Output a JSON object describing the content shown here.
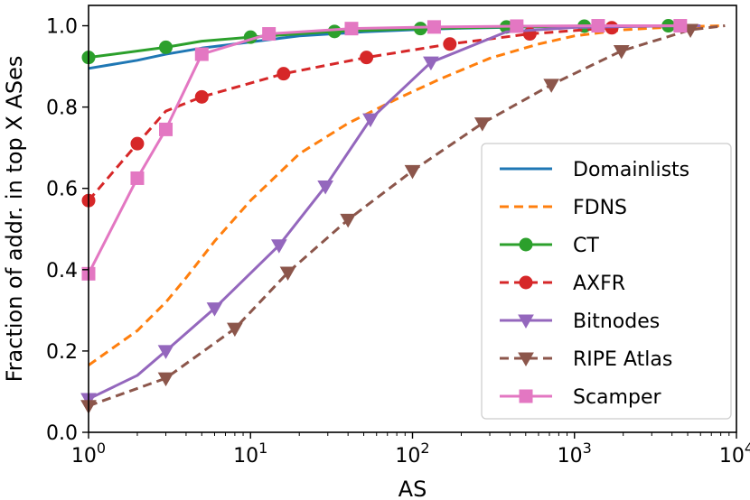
{
  "chart_data": {
    "type": "line",
    "title": "",
    "xlabel": "AS",
    "ylabel": "Fraction of addr. in top X ASes",
    "xscale": "log",
    "xlim": [
      1,
      10000
    ],
    "ylim": [
      0,
      1.05
    ],
    "x_ticks": [
      {
        "value": 1,
        "base": "10",
        "exp": "0"
      },
      {
        "value": 10,
        "base": "10",
        "exp": "1"
      },
      {
        "value": 100,
        "base": "10",
        "exp": "2"
      },
      {
        "value": 1000,
        "base": "10",
        "exp": "3"
      },
      {
        "value": 10000,
        "base": "10",
        "exp": "4"
      }
    ],
    "y_ticks": [
      {
        "value": 0.0,
        "label": "0.0"
      },
      {
        "value": 0.2,
        "label": "0.2"
      },
      {
        "value": 0.4,
        "label": "0.4"
      },
      {
        "value": 0.6,
        "label": "0.6"
      },
      {
        "value": 0.8,
        "label": "0.8"
      },
      {
        "value": 1.0,
        "label": "1.0"
      }
    ],
    "grid": false,
    "legend_position": "lower-right",
    "series": [
      {
        "name": "Domainlists",
        "color": "#1f77b4",
        "dash": "solid",
        "marker": "none",
        "x": [
          1,
          2,
          3,
          5,
          10,
          20,
          50,
          100,
          200,
          500,
          1000,
          1400
        ],
        "y": [
          0.895,
          0.915,
          0.93,
          0.945,
          0.96,
          0.975,
          0.985,
          0.99,
          0.994,
          0.997,
          0.999,
          1.0
        ],
        "marker_x": []
      },
      {
        "name": "FDNS",
        "color": "#ff7f0e",
        "dash": "dashed",
        "marker": "none",
        "x": [
          1,
          2,
          3,
          4,
          6,
          10,
          20,
          40,
          80,
          150,
          300,
          600,
          1000,
          2000,
          4000,
          8000
        ],
        "y": [
          0.165,
          0.25,
          0.32,
          0.38,
          0.47,
          0.57,
          0.685,
          0.76,
          0.82,
          0.87,
          0.92,
          0.955,
          0.975,
          0.99,
          0.997,
          1.0
        ],
        "marker_x": []
      },
      {
        "name": "CT",
        "color": "#2ca02c",
        "dash": "solid",
        "marker": "circle",
        "x": [
          1,
          3,
          5,
          10,
          33,
          112,
          380,
          1150,
          3800,
          4500
        ],
        "y": [
          0.922,
          0.947,
          0.962,
          0.972,
          0.986,
          0.993,
          0.997,
          0.999,
          1.0,
          1.0
        ],
        "marker_x": [
          1,
          3,
          10,
          33,
          112,
          380,
          1150,
          3800
        ]
      },
      {
        "name": "AXFR",
        "color": "#d62728",
        "dash": "dashed",
        "marker": "circle",
        "x": [
          1,
          2,
          3,
          5,
          16,
          52,
          170,
          530,
          1700
        ],
        "y": [
          0.57,
          0.71,
          0.79,
          0.825,
          0.882,
          0.922,
          0.955,
          0.98,
          0.995
        ],
        "marker_x": [
          1,
          2,
          5,
          16,
          52,
          170,
          530,
          1700
        ]
      },
      {
        "name": "Bitnodes",
        "color": "#9467bd",
        "dash": "solid",
        "marker": "triangle-down",
        "x": [
          1,
          2,
          3,
          6,
          15,
          29,
          55,
          130,
          380,
          1000,
          3000,
          6000
        ],
        "y": [
          0.082,
          0.14,
          0.2,
          0.305,
          0.46,
          0.605,
          0.77,
          0.91,
          0.985,
          0.996,
          0.999,
          1.0
        ],
        "marker_x": [
          1,
          3,
          6,
          15,
          29,
          55,
          130
        ]
      },
      {
        "name": "RIPE Atlas",
        "color": "#8c564b",
        "dash": "dashed",
        "marker": "triangle-down",
        "x": [
          1,
          3,
          8,
          17,
          40,
          100,
          270,
          720,
          1950,
          5200,
          8500
        ],
        "y": [
          0.065,
          0.133,
          0.255,
          0.393,
          0.523,
          0.643,
          0.76,
          0.855,
          0.938,
          0.99,
          1.0
        ],
        "marker_x": [
          1,
          3,
          8,
          17,
          40,
          100,
          270,
          720,
          1950,
          5200
        ]
      },
      {
        "name": "Scamper",
        "color": "#e377c2",
        "dash": "solid",
        "marker": "square",
        "x": [
          1,
          2,
          3,
          5,
          13,
          42,
          136,
          440,
          1400,
          4500
        ],
        "y": [
          0.39,
          0.625,
          0.745,
          0.93,
          0.98,
          0.993,
          0.997,
          0.999,
          1.0,
          1.0
        ],
        "marker_x": [
          1,
          2,
          3,
          5,
          13,
          42,
          136,
          440,
          1400,
          4500
        ]
      }
    ]
  }
}
